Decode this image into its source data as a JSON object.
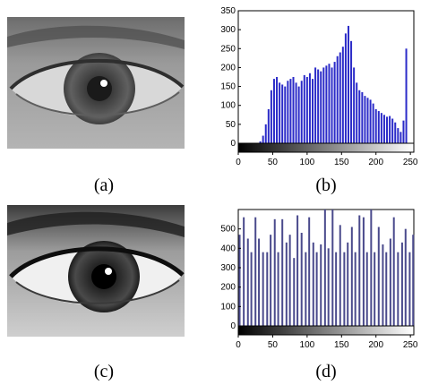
{
  "captions": {
    "a": "(a)",
    "b": "(b)",
    "c": "(c)",
    "d": "(d)"
  },
  "chart_data": [
    {
      "type": "bar",
      "panel": "b",
      "xlim": [
        0,
        255
      ],
      "ylim": [
        0,
        350
      ],
      "x_ticks": [
        0,
        50,
        100,
        150,
        200,
        250
      ],
      "y_ticks": [
        0,
        50,
        100,
        150,
        200,
        250,
        300,
        350
      ],
      "bar_color": "#2b2bc8",
      "x": [
        32,
        36,
        40,
        44,
        48,
        52,
        56,
        60,
        64,
        68,
        72,
        76,
        80,
        84,
        88,
        92,
        96,
        100,
        104,
        108,
        112,
        116,
        120,
        124,
        128,
        132,
        136,
        140,
        144,
        148,
        152,
        156,
        160,
        164,
        168,
        172,
        176,
        180,
        184,
        188,
        192,
        196,
        200,
        204,
        208,
        212,
        216,
        220,
        224,
        228,
        232,
        236,
        240,
        244
      ],
      "values": [
        5,
        20,
        50,
        90,
        140,
        170,
        175,
        160,
        155,
        150,
        165,
        170,
        175,
        160,
        150,
        165,
        180,
        175,
        185,
        170,
        200,
        195,
        190,
        200,
        205,
        210,
        200,
        215,
        230,
        240,
        255,
        290,
        310,
        270,
        200,
        160,
        140,
        135,
        125,
        120,
        115,
        105,
        90,
        85,
        80,
        75,
        70,
        72,
        65,
        55,
        40,
        30,
        60,
        250
      ]
    },
    {
      "type": "bar",
      "panel": "d",
      "xlim": [
        0,
        255
      ],
      "ylim": [
        0,
        600
      ],
      "x_ticks": [
        0,
        50,
        100,
        150,
        200,
        250
      ],
      "y_ticks": [
        0,
        100,
        200,
        300,
        400,
        500
      ],
      "bar_color": "#4a4a8c",
      "x": [
        2,
        8,
        14,
        19,
        25,
        30,
        36,
        42,
        47,
        53,
        58,
        64,
        70,
        75,
        81,
        86,
        92,
        98,
        103,
        109,
        114,
        120,
        126,
        131,
        137,
        142,
        148,
        154,
        159,
        165,
        170,
        176,
        182,
        187,
        193,
        198,
        204,
        210,
        215,
        221,
        226,
        232,
        238,
        243,
        249,
        254
      ],
      "values": [
        470,
        560,
        450,
        380,
        560,
        450,
        380,
        380,
        470,
        550,
        380,
        550,
        430,
        470,
        350,
        570,
        480,
        380,
        560,
        430,
        380,
        420,
        600,
        400,
        600,
        380,
        520,
        380,
        430,
        510,
        380,
        570,
        560,
        380,
        600,
        380,
        510,
        420,
        380,
        450,
        560,
        380,
        430,
        500,
        380,
        470
      ]
    }
  ]
}
